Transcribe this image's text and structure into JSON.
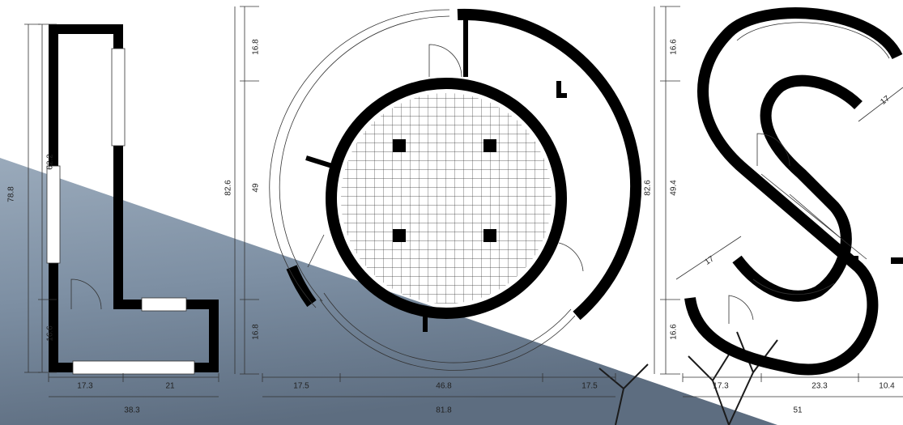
{
  "plans": [
    {
      "vertical": [
        "78.8",
        "62.2",
        "16.6"
      ],
      "horizontal": [
        "17.3",
        "21",
        "38.3"
      ]
    },
    {
      "vertical": [
        "16.8",
        "49",
        "16.8",
        "82.6"
      ],
      "horizontal": [
        "17.5",
        "46.8",
        "17.5",
        "81.8"
      ]
    },
    {
      "vertical": [
        "16.6",
        "49.4",
        "16.6",
        "82.6"
      ],
      "horizontal": [
        "17.3",
        "23.3",
        "10.4",
        "51"
      ],
      "diagonal": [
        "17",
        "17"
      ]
    }
  ]
}
